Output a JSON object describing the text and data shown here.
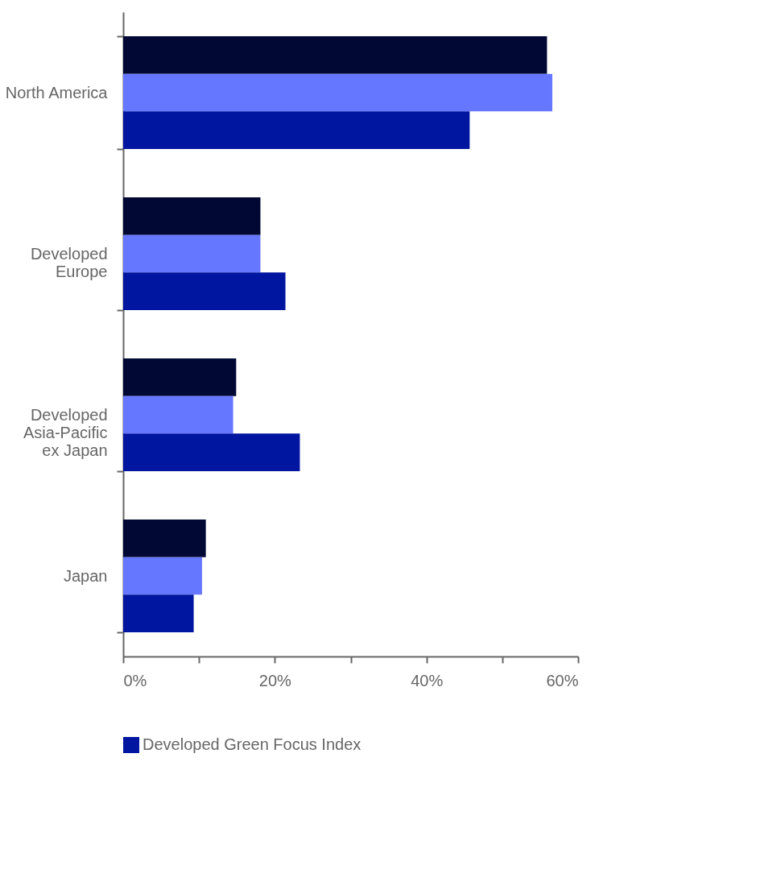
{
  "chart_data": {
    "type": "bar",
    "orientation": "horizontal",
    "categories": [
      "North America",
      "Developed Europe",
      "Developed Asia-Pacific ex Japan",
      "Japan"
    ],
    "series": [
      {
        "color": "#000833",
        "values": [
          55.9,
          18.1,
          14.9,
          10.9
        ]
      },
      {
        "color": "#6677ff",
        "values": [
          56.6,
          18.1,
          14.5,
          10.4
        ]
      },
      {
        "name": "Developed Green Focus Index",
        "color": "#0015a0",
        "values": [
          45.7,
          21.4,
          23.3,
          9.3
        ]
      }
    ],
    "xlim": [
      0,
      60
    ],
    "xticks": [
      {
        "value": 0,
        "label": "0%"
      },
      {
        "value": 10,
        "label": null
      },
      {
        "value": 20,
        "label": "20%"
      },
      {
        "value": 30,
        "label": null
      },
      {
        "value": 40,
        "label": "40%"
      },
      {
        "value": 50,
        "label": null
      },
      {
        "value": 60,
        "label": "60%"
      }
    ],
    "grid": false,
    "legend": "bottom"
  }
}
